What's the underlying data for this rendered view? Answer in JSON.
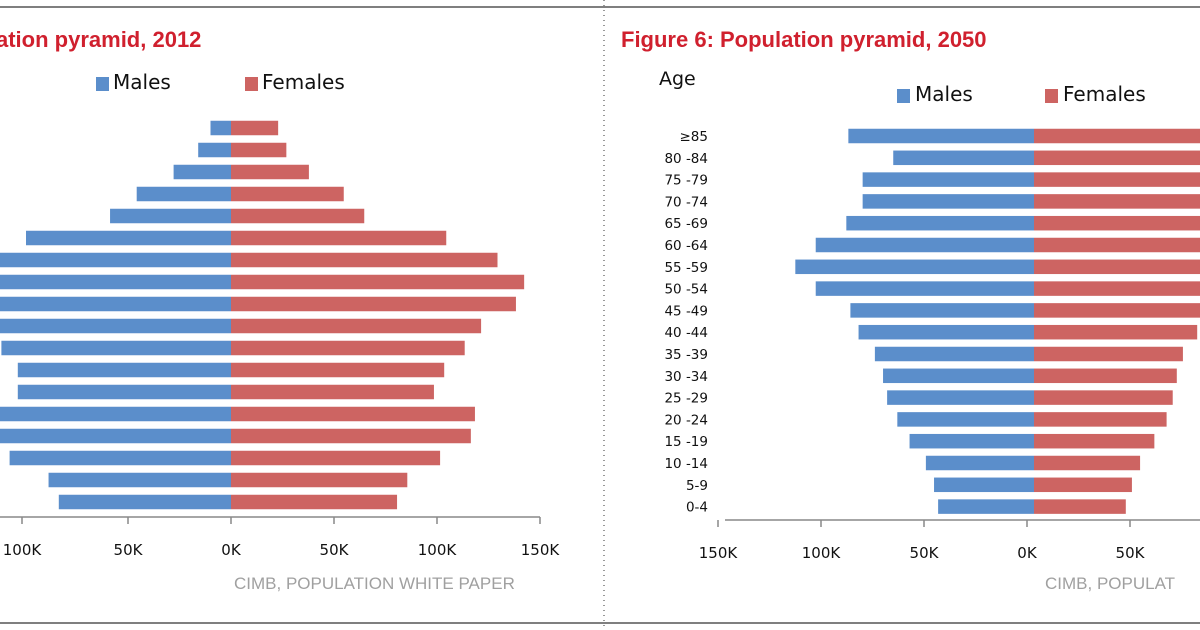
{
  "colors": {
    "males": "#5b8ecb",
    "females": "#cd6462",
    "title": "#d0202e",
    "frame": "#555555",
    "source": "#a0a0a0"
  },
  "chart_data": [
    {
      "type": "bar",
      "orientation": "horizontal-pyramid",
      "title": "ation pyramid, 2012",
      "legend": [
        "Males",
        "Females"
      ],
      "categories": [
        "",
        "",
        "",
        "",
        "",
        "",
        "",
        "",
        "",
        "",
        "",
        "",
        "",
        "",
        "",
        "",
        "",
        ""
      ],
      "series": [
        {
          "name": "Males",
          "values": [
            10,
            16,
            28,
            46,
            59,
            100,
            118,
            140,
            136,
            120,
            112,
            104,
            104,
            118,
            116,
            108,
            89,
            84
          ]
        },
        {
          "name": "Females",
          "values": [
            23,
            27,
            38,
            55,
            65,
            105,
            130,
            143,
            139,
            122,
            114,
            104,
            99,
            119,
            117,
            102,
            86,
            81
          ]
        }
      ],
      "x_ticks": [
        "100K",
        "50K",
        "0K",
        "50K",
        "100K",
        "150K"
      ],
      "xlim": [
        -150,
        150
      ],
      "source": "CIMB, POPULATION WHITE PAPER",
      "grid": false
    },
    {
      "type": "bar",
      "orientation": "horizontal-pyramid",
      "title": "Figure 6: Population pyramid, 2050",
      "ylabel": "Age",
      "legend": [
        "Males",
        "Females"
      ],
      "categories": [
        "≥85",
        "80 -84",
        "75 -79",
        "70 -74",
        "65 -69",
        "60 -64",
        "55 -59",
        "50 -54",
        "45 -49",
        "40 -44",
        "35 -39",
        "30 -34",
        "25 -29",
        "20 -24",
        "15 -19",
        "10 -14",
        "5-9",
        "0-4"
      ],
      "series": [
        {
          "name": "Males",
          "values": [
            91,
            69,
            84,
            84,
            92,
            107,
            117,
            107,
            90,
            86,
            78,
            74,
            72,
            67,
            61,
            53,
            49,
            47
          ]
        },
        {
          "name": "Females",
          "values": [
            95,
            95,
            95,
            95,
            95,
            95,
            95,
            95,
            95,
            80,
            73,
            70,
            68,
            65,
            59,
            52,
            48,
            45
          ]
        }
      ],
      "x_ticks": [
        "150K",
        "100K",
        "50K",
        "0K",
        "50K"
      ],
      "xlim": [
        -150,
        150
      ],
      "source": "CIMB, POPULAT",
      "grid": false
    }
  ]
}
